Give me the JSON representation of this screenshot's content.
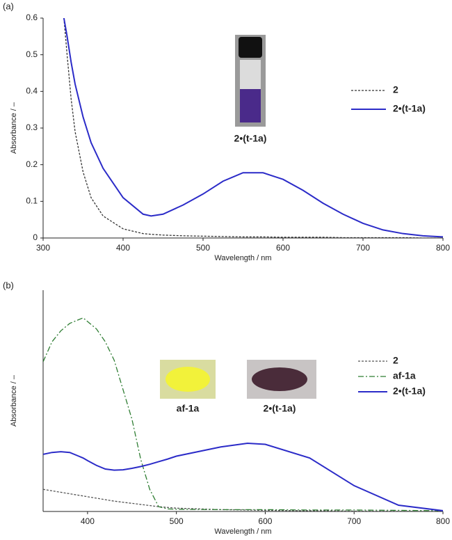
{
  "chart_data": [
    {
      "type": "line",
      "panel": "(a)",
      "xlabel": "Wavelength / nm",
      "ylabel": "Absorbance / –",
      "xlim": [
        300,
        800
      ],
      "xticks": [
        300,
        400,
        500,
        600,
        700,
        800
      ],
      "ylim": [
        0,
        0.6
      ],
      "yticks": [
        0,
        0.1,
        0.2,
        0.3,
        0.4,
        0.5,
        0.6
      ],
      "legend": "upper right",
      "x": [
        326,
        330,
        335,
        340,
        350,
        360,
        375,
        400,
        425,
        435,
        450,
        475,
        500,
        525,
        550,
        575,
        600,
        625,
        650,
        675,
        700,
        725,
        750,
        775,
        800
      ],
      "series": [
        {
          "name": "2",
          "color": "#333333",
          "dash": "dashed",
          "values": [
            0.6,
            0.5,
            0.38,
            0.29,
            0.18,
            0.11,
            0.06,
            0.025,
            0.012,
            0.01,
            0.008,
            0.006,
            0.005,
            0.004,
            0.003,
            0.003,
            0.002,
            0.002,
            0.002,
            0.001,
            0.001,
            0.001,
            0.001,
            0,
            0
          ]
        },
        {
          "name": "2•(t-1a)",
          "color": "#2b2bc8",
          "dash": "solid",
          "values": [
            0.6,
            0.55,
            0.48,
            0.42,
            0.33,
            0.26,
            0.19,
            0.11,
            0.065,
            0.06,
            0.065,
            0.09,
            0.12,
            0.155,
            0.178,
            0.178,
            0.16,
            0.13,
            0.095,
            0.065,
            0.04,
            0.022,
            0.012,
            0.006,
            0.003
          ]
        }
      ],
      "annotations": [
        "2•(t-1a)"
      ]
    },
    {
      "type": "line",
      "panel": "(b)",
      "xlabel": "Wavelength / nm",
      "ylabel": "Absorbance / –",
      "xlim": [
        350,
        800
      ],
      "xticks": [
        400,
        500,
        600,
        700,
        800
      ],
      "ylim": [
        0,
        6
      ],
      "legend": "right",
      "x": [
        350,
        360,
        370,
        380,
        390,
        395,
        400,
        410,
        420,
        430,
        440,
        450,
        460,
        470,
        480,
        490,
        500,
        550,
        580,
        600,
        650,
        700,
        750,
        800
      ],
      "series": [
        {
          "name": "2",
          "color": "#555555",
          "dash": "dashed",
          "values": [
            0.6,
            0.56,
            0.52,
            0.48,
            0.44,
            0.42,
            0.4,
            0.36,
            0.32,
            0.28,
            0.25,
            0.22,
            0.19,
            0.16,
            0.13,
            0.11,
            0.09,
            0.05,
            0.04,
            0.03,
            0.02,
            0.01,
            0.005,
            0
          ]
        },
        {
          "name": "af-1a",
          "color": "#2e7d32",
          "dash": "dashdot",
          "values": [
            4.06,
            4.6,
            4.9,
            5.1,
            5.2,
            5.25,
            5.15,
            4.95,
            4.6,
            4.1,
            3.3,
            2.5,
            1.4,
            0.6,
            0.13,
            0.07,
            0.06,
            0.05,
            0.05,
            0.05,
            0.04,
            0.04,
            0.03,
            0.02
          ]
        },
        {
          "name": "2•(t-1a)",
          "color": "#2b2bc8",
          "dash": "solid",
          "values": [
            1.55,
            1.6,
            1.62,
            1.6,
            1.5,
            1.45,
            1.38,
            1.25,
            1.15,
            1.12,
            1.13,
            1.17,
            1.22,
            1.28,
            1.35,
            1.42,
            1.5,
            1.75,
            1.85,
            1.82,
            1.45,
            0.7,
            0.17,
            0.02
          ]
        }
      ],
      "annotations": [
        "af-1a",
        "2•(t-1a)"
      ]
    }
  ]
}
